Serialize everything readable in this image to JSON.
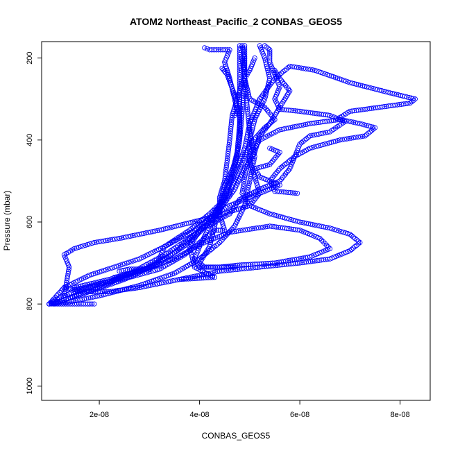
{
  "chart_data": {
    "type": "scatter",
    "title": "ATOM2 Northeast_Pacific_2 CONBAS_GEOS5",
    "xlabel": "CONBAS_GEOS5",
    "ylabel": "Pressure (mbar)",
    "xlim": [
      8.5e-09,
      8.6e-08
    ],
    "ylim": [
      1035,
      160
    ],
    "y_reversed": true,
    "x_ticks": [
      2e-08,
      4e-08,
      6e-08,
      8e-08
    ],
    "x_tick_labels": [
      "2e-08",
      "4e-08",
      "6e-08",
      "8e-08"
    ],
    "y_ticks": [
      200,
      400,
      600,
      800,
      1000
    ],
    "y_tick_labels": [
      "200",
      "400",
      "600",
      "800",
      "1000"
    ],
    "grid": false,
    "marker": "open-circle",
    "line_style": "dash-dot",
    "color": "#0000ff",
    "series": [
      {
        "points": [
          [
            1e-08,
            800
          ],
          [
            1.3e-08,
            790
          ],
          [
            1.8e-08,
            770
          ],
          [
            2.5e-08,
            740
          ],
          [
            3.2e-08,
            700
          ],
          [
            3.8e-08,
            650
          ],
          [
            4.2e-08,
            600
          ],
          [
            4.5e-08,
            540
          ],
          [
            4.7e-08,
            470
          ],
          [
            4.8e-08,
            400
          ],
          [
            4.85e-08,
            330
          ],
          [
            4.9e-08,
            260
          ],
          [
            4.9e-08,
            200
          ],
          [
            4.85e-08,
            170
          ]
        ]
      },
      {
        "points": [
          [
            1e-08,
            800
          ],
          [
            1.2e-08,
            785
          ],
          [
            1.6e-08,
            765
          ],
          [
            2.2e-08,
            745
          ],
          [
            2.9e-08,
            715
          ],
          [
            3.5e-08,
            675
          ],
          [
            4e-08,
            620
          ],
          [
            4.4e-08,
            560
          ],
          [
            4.6e-08,
            500
          ],
          [
            4.75e-08,
            430
          ],
          [
            4.8e-08,
            360
          ],
          [
            4.8e-08,
            290
          ],
          [
            4.8e-08,
            230
          ],
          [
            4.8e-08,
            170
          ]
        ]
      },
      {
        "points": [
          [
            1e-08,
            800
          ],
          [
            1.4e-08,
            795
          ],
          [
            2e-08,
            780
          ],
          [
            2.8e-08,
            755
          ],
          [
            3.5e-08,
            725
          ],
          [
            4e-08,
            690
          ],
          [
            4.4e-08,
            650
          ],
          [
            4.7e-08,
            610
          ],
          [
            4.9e-08,
            560
          ],
          [
            5e-08,
            500
          ],
          [
            5.1e-08,
            440
          ],
          [
            5e-08,
            380
          ],
          [
            4.95e-08,
            320
          ],
          [
            4.9e-08,
            250
          ],
          [
            4.9e-08,
            170
          ]
        ]
      },
      {
        "points": [
          [
            1.1e-08,
            800
          ],
          [
            1.5e-08,
            780
          ],
          [
            2.1e-08,
            755
          ],
          [
            2.7e-08,
            720
          ],
          [
            3.3e-08,
            680
          ],
          [
            3.8e-08,
            640
          ],
          [
            4.3e-08,
            590
          ],
          [
            4.6e-08,
            530
          ],
          [
            4.8e-08,
            470
          ],
          [
            5e-08,
            410
          ],
          [
            5.3e-08,
            370
          ],
          [
            5.5e-08,
            350
          ],
          [
            5.3e-08,
            320
          ],
          [
            5e-08,
            300
          ],
          [
            4.9e-08,
            250
          ],
          [
            4.85e-08,
            200
          ]
        ]
      },
      {
        "points": [
          [
            1.9e-08,
            800
          ],
          [
            1.2e-08,
            800
          ],
          [
            1e-08,
            800
          ],
          [
            1.3e-08,
            760
          ],
          [
            1.8e-08,
            730
          ],
          [
            2.3e-08,
            710
          ],
          [
            2.8e-08,
            690
          ],
          [
            3.3e-08,
            660
          ],
          [
            3.8e-08,
            620
          ],
          [
            4.2e-08,
            580
          ],
          [
            4.5e-08,
            545
          ],
          [
            4.6e-08,
            510
          ],
          [
            4.75e-08,
            470
          ],
          [
            4.9e-08,
            420
          ],
          [
            5e-08,
            360
          ],
          [
            5.2e-08,
            300
          ],
          [
            5.5e-08,
            250
          ],
          [
            5.8e-08,
            220
          ],
          [
            6.3e-08,
            230
          ],
          [
            7e-08,
            260
          ],
          [
            7.8e-08,
            285
          ],
          [
            8.3e-08,
            300
          ],
          [
            8.2e-08,
            310
          ],
          [
            7.6e-08,
            320
          ],
          [
            7e-08,
            330
          ],
          [
            6.8e-08,
            345
          ]
        ]
      },
      {
        "points": [
          [
            1.3e-08,
            760
          ],
          [
            1.7e-08,
            770
          ],
          [
            2.2e-08,
            770
          ],
          [
            2.8e-08,
            760
          ],
          [
            3.6e-08,
            740
          ],
          [
            4.4e-08,
            720
          ],
          [
            5.2e-08,
            710
          ],
          [
            6e-08,
            700
          ],
          [
            6.6e-08,
            690
          ],
          [
            7e-08,
            670
          ],
          [
            7.2e-08,
            650
          ],
          [
            7e-08,
            630
          ],
          [
            6.6e-08,
            615
          ],
          [
            6e-08,
            600
          ],
          [
            5.4e-08,
            580
          ],
          [
            5e-08,
            560
          ],
          [
            4.85e-08,
            530
          ],
          [
            4.9e-08,
            490
          ],
          [
            5e-08,
            440
          ],
          [
            5.2e-08,
            400
          ],
          [
            5.6e-08,
            375
          ],
          [
            6.2e-08,
            360
          ],
          [
            6.8e-08,
            350
          ],
          [
            7.2e-08,
            360
          ],
          [
            7.5e-08,
            370
          ],
          [
            7.3e-08,
            390
          ],
          [
            6.8e-08,
            400
          ],
          [
            6.2e-08,
            420
          ],
          [
            5.9e-08,
            440
          ],
          [
            5.6e-08,
            470
          ],
          [
            5.4e-08,
            500
          ],
          [
            5.5e-08,
            525
          ],
          [
            5.95e-08,
            530
          ]
        ]
      },
      {
        "points": [
          [
            1.5e-08,
            760
          ],
          [
            2.2e-08,
            740
          ],
          [
            2.9e-08,
            715
          ],
          [
            3.5e-08,
            690
          ],
          [
            4e-08,
            655
          ],
          [
            4.6e-08,
            625
          ],
          [
            5.4e-08,
            610
          ],
          [
            6e-08,
            620
          ],
          [
            6.4e-08,
            640
          ],
          [
            6.6e-08,
            665
          ],
          [
            6.2e-08,
            685
          ],
          [
            5.5e-08,
            700
          ],
          [
            4.8e-08,
            705
          ],
          [
            4.4e-08,
            710
          ],
          [
            4e-08,
            710
          ],
          [
            3.9e-08,
            690
          ],
          [
            4e-08,
            660
          ],
          [
            4.2e-08,
            610
          ],
          [
            4.4e-08,
            570
          ],
          [
            4.7e-08,
            520
          ],
          [
            4.9e-08,
            470
          ],
          [
            5.1e-08,
            430
          ],
          [
            5.2e-08,
            390
          ],
          [
            5.4e-08,
            360
          ],
          [
            5.6e-08,
            320
          ],
          [
            5.8e-08,
            280
          ],
          [
            5.6e-08,
            250
          ],
          [
            5.5e-08,
            230
          ]
        ]
      },
      {
        "points": [
          [
            1.3e-08,
            780
          ],
          [
            1.4e-08,
            710
          ],
          [
            1.3e-08,
            680
          ],
          [
            1.5e-08,
            665
          ],
          [
            1.9e-08,
            650
          ],
          [
            2.4e-08,
            640
          ],
          [
            2.8e-08,
            630
          ],
          [
            3.2e-08,
            620
          ],
          [
            3.7e-08,
            605
          ],
          [
            4.2e-08,
            590
          ],
          [
            4.6e-08,
            575
          ],
          [
            5e-08,
            560
          ],
          [
            5.2e-08,
            530
          ],
          [
            5.1e-08,
            490
          ],
          [
            5e-08,
            450
          ],
          [
            5e-08,
            400
          ],
          [
            5.1e-08,
            350
          ],
          [
            5.3e-08,
            300
          ],
          [
            5.4e-08,
            250
          ],
          [
            5.3e-08,
            200
          ],
          [
            5.2e-08,
            170
          ]
        ]
      },
      {
        "points": [
          [
            3.6e-08,
            740
          ],
          [
            4.3e-08,
            735
          ],
          [
            3.9e-08,
            710
          ],
          [
            3.8e-08,
            660
          ],
          [
            4e-08,
            620
          ],
          [
            4.3e-08,
            600
          ],
          [
            4.6e-08,
            580
          ],
          [
            4.8e-08,
            545
          ],
          [
            5.2e-08,
            520
          ],
          [
            5.6e-08,
            500
          ],
          [
            5.8e-08,
            470
          ],
          [
            5.9e-08,
            440
          ],
          [
            6e-08,
            410
          ],
          [
            6.2e-08,
            390
          ],
          [
            6.6e-08,
            380
          ],
          [
            6.9e-08,
            355
          ],
          [
            6.6e-08,
            340
          ],
          [
            6e-08,
            330
          ],
          [
            5.6e-08,
            325
          ],
          [
            5.5e-08,
            300
          ],
          [
            5.6e-08,
            270
          ],
          [
            5.5e-08,
            240
          ],
          [
            5.4e-08,
            210
          ],
          [
            5.4e-08,
            180
          ],
          [
            5.3e-08,
            170
          ]
        ]
      },
      {
        "points": [
          [
            1.5e-08,
            765
          ],
          [
            1.7e-08,
            760
          ],
          [
            2e-08,
            750
          ],
          [
            2.6e-08,
            735
          ],
          [
            3.2e-08,
            715
          ],
          [
            3.7e-08,
            680
          ],
          [
            4.1e-08,
            640
          ],
          [
            4.3e-08,
            620
          ],
          [
            4.5e-08,
            620
          ],
          [
            4.4e-08,
            580
          ],
          [
            4.4e-08,
            540
          ],
          [
            4.5e-08,
            500
          ],
          [
            4.55e-08,
            450
          ],
          [
            4.6e-08,
            400
          ],
          [
            4.65e-08,
            340
          ],
          [
            4.75e-08,
            300
          ],
          [
            4.85e-08,
            260
          ],
          [
            5e-08,
            230
          ],
          [
            5.1e-08,
            200
          ]
        ]
      },
      {
        "points": [
          [
            4.1e-08,
            175
          ],
          [
            4.2e-08,
            180
          ],
          [
            4.6e-08,
            180
          ],
          [
            4.5e-08,
            210
          ],
          [
            4.6e-08,
            250
          ],
          [
            4.7e-08,
            300
          ],
          [
            4.75e-08,
            330
          ],
          [
            4.7e-08,
            340
          ]
        ]
      },
      {
        "points": [
          [
            4.45e-08,
            225
          ],
          [
            4.55e-08,
            240
          ],
          [
            4.7e-08,
            290
          ],
          [
            4.8e-08,
            340
          ],
          [
            4.8e-08,
            400
          ],
          [
            4.7e-08,
            460
          ],
          [
            4.5e-08,
            510
          ],
          [
            4.4e-08,
            560
          ],
          [
            4.3e-08,
            610
          ],
          [
            4.2e-08,
            660
          ],
          [
            4e-08,
            700
          ],
          [
            4.1e-08,
            710
          ],
          [
            4.7e-08,
            710
          ]
        ]
      },
      {
        "points": [
          [
            3.2e-08,
            690
          ],
          [
            3.3e-08,
            660
          ],
          [
            3.6e-08,
            640
          ],
          [
            3.9e-08,
            620
          ],
          [
            4.2e-08,
            590
          ],
          [
            4.6e-08,
            560
          ],
          [
            5e-08,
            540
          ],
          [
            5.4e-08,
            520
          ],
          [
            5.6e-08,
            510
          ],
          [
            5.2e-08,
            490
          ],
          [
            5.1e-08,
            470
          ],
          [
            5.4e-08,
            460
          ],
          [
            5.6e-08,
            430
          ],
          [
            5.4e-08,
            420
          ]
        ]
      },
      {
        "points": [
          [
            2.3e-08,
            735
          ],
          [
            2.5e-08,
            730
          ],
          [
            2.8e-08,
            720
          ],
          [
            3e-08,
            710
          ],
          [
            3.2e-08,
            700
          ],
          [
            3e-08,
            715
          ],
          [
            2.6e-08,
            715
          ],
          [
            2.4e-08,
            720
          ]
        ]
      }
    ]
  }
}
